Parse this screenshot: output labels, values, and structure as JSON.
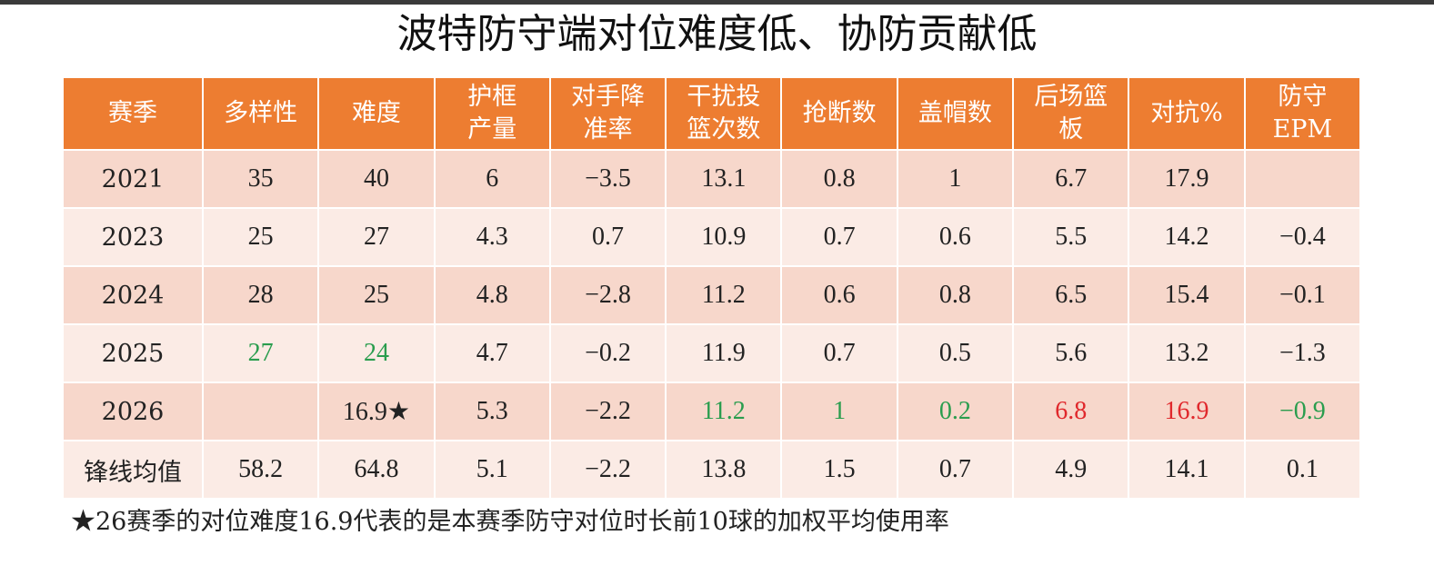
{
  "title": "波特防守端对位难度低、协防贡献低",
  "table": {
    "header": [
      [
        "赛季"
      ],
      [
        "多样性"
      ],
      [
        "难度"
      ],
      [
        "护框",
        "产量"
      ],
      [
        "对手降",
        "准率"
      ],
      [
        "干扰投",
        "篮次数"
      ],
      [
        "抢断数"
      ],
      [
        "盖帽数"
      ],
      [
        "后场篮",
        "板"
      ],
      [
        "对抗%"
      ],
      [
        "防守",
        "EPM"
      ]
    ],
    "rows": [
      [
        "2021",
        "35",
        "40",
        "6",
        "−3.5",
        "13.1",
        "0.8",
        "1",
        "6.7",
        "17.9",
        null
      ],
      [
        "2023",
        "25",
        "27",
        "4.3",
        "0.7",
        "10.9",
        "0.7",
        "0.6",
        "5.5",
        "14.2",
        "−0.4"
      ],
      [
        "2024",
        "28",
        "25",
        "4.8",
        "−2.8",
        "11.2",
        "0.6",
        "0.8",
        "6.5",
        "15.4",
        "−0.1"
      ],
      [
        "2025",
        "27",
        "24",
        "4.7",
        "−0.2",
        "11.9",
        "0.7",
        "0.5",
        "5.6",
        "13.2",
        "−1.3"
      ],
      [
        "2026",
        null,
        "16.9★",
        "5.3",
        "−2.2",
        "11.2",
        "1",
        "0.2",
        "6.8",
        "16.9",
        "−0.9"
      ],
      [
        "锋线均值",
        "58.2",
        "64.8",
        "5.1",
        "−2.2",
        "13.8",
        "1.5",
        "0.7",
        "4.9",
        "14.1",
        "0.1"
      ]
    ],
    "text_colors": [
      [
        null,
        null,
        null,
        null,
        null,
        null,
        null,
        null,
        null,
        null,
        null
      ],
      [
        null,
        null,
        null,
        null,
        null,
        null,
        null,
        null,
        null,
        null,
        null
      ],
      [
        null,
        null,
        null,
        null,
        null,
        null,
        null,
        null,
        null,
        null,
        null
      ],
      [
        null,
        "#2a9d4e",
        "#2a9d4e",
        null,
        null,
        null,
        null,
        null,
        null,
        null,
        null
      ],
      [
        null,
        null,
        null,
        null,
        null,
        "#2a9d4e",
        "#2a9d4e",
        "#2a9d4e",
        "#e0282c",
        "#e0282c",
        "#2a9d4e"
      ],
      [
        null,
        null,
        null,
        null,
        null,
        null,
        null,
        null,
        null,
        null,
        null
      ]
    ]
  },
  "footnote": "★26赛季的对位难度16.9代表的是本赛季防守对位时长前10球的加权平均使用率"
}
